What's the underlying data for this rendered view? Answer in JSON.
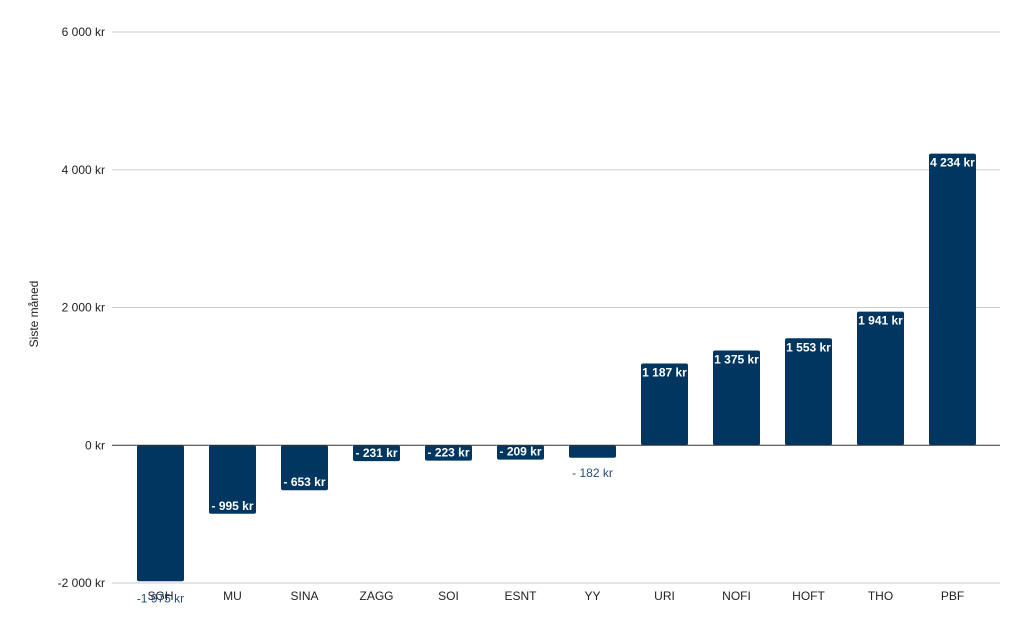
{
  "chart_data": {
    "type": "bar",
    "title": "",
    "xlabel": "",
    "ylabel": "Siste måned",
    "ylim": [
      -2000,
      6000
    ],
    "yticks": [
      -2000,
      0,
      2000,
      4000,
      6000
    ],
    "ytick_labels": [
      "-2 000 kr",
      "0 kr",
      "2 000 kr",
      "4 000 kr",
      "6 000 kr"
    ],
    "grid": true,
    "legend": "none",
    "bar_color": "#003660",
    "categories": [
      "SGH",
      "MU",
      "SINA",
      "ZAGG",
      "SOI",
      "ESNT",
      "YY",
      "URI",
      "NOFI",
      "HOFT",
      "THO",
      "PBF"
    ],
    "values": [
      -1975,
      -995,
      -653,
      -231,
      -223,
      -209,
      -182,
      1187,
      1375,
      1553,
      1941,
      4234
    ],
    "data_labels": [
      "-1 975 kr",
      "- 995 kr",
      "- 653 kr",
      "- 231 kr",
      "- 223 kr",
      "- 209 kr",
      "- 182 kr",
      "1 187 kr",
      "1 375 kr",
      "1 553 kr",
      "1 941 kr",
      "4 234 kr"
    ]
  }
}
